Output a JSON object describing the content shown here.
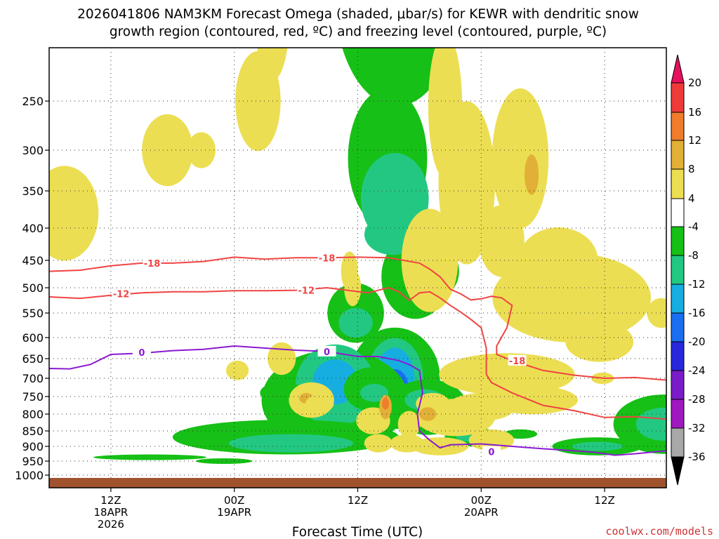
{
  "title_line1": "2026041806 NAM3KM Forecast Omega (shaded, μbar/s) for KEWR with dendritic snow",
  "title_line2": "growth region (contoured, red, ºC) and freezing level (contoured, purple, ºC)",
  "credit": "coolwx.com/models",
  "chart_data": {
    "type": "heatmap",
    "xlabel": "Forecast Time (UTC)",
    "ylabel": "",
    "x_ticks": [
      {
        "h": 6,
        "lines": [
          "12Z",
          "18APR",
          "2026"
        ]
      },
      {
        "h": 18,
        "lines": [
          "00Z",
          "19APR"
        ]
      },
      {
        "h": 30,
        "lines": [
          "12Z"
        ]
      },
      {
        "h": 42,
        "lines": [
          "00Z",
          "20APR"
        ]
      },
      {
        "h": 54,
        "lines": [
          "12Z"
        ]
      }
    ],
    "xlim_hours": [
      0,
      60
    ],
    "y_ticks": [
      250,
      300,
      350,
      400,
      450,
      500,
      550,
      600,
      650,
      700,
      750,
      800,
      850,
      900,
      950,
      1000
    ],
    "ylim_hPa": [
      200,
      1020
    ],
    "y_scale": "pressure",
    "colorbar": {
      "labels": [
        "20",
        "16",
        "12",
        "8",
        "4",
        "-4",
        "-8",
        "-12",
        "-16",
        "-20",
        "-24",
        "-28",
        "-32",
        "-36"
      ],
      "colors": [
        "#e8105e",
        "#ef3a3a",
        "#f07c2c",
        "#e2b036",
        "#ecde52",
        "#ffffff",
        "#16c016",
        "#22c882",
        "#16aee0",
        "#1a6ef0",
        "#2828dc",
        "#7a1cc8",
        "#a018c0",
        "#a8a8a8",
        "#000000"
      ]
    },
    "series": [
      {
        "name": "-18",
        "color": "#ef4444",
        "points": [
          [
            0,
            470
          ],
          [
            3,
            468
          ],
          [
            6,
            460
          ],
          [
            9,
            455
          ],
          [
            12,
            455
          ],
          [
            15,
            452
          ],
          [
            18,
            445
          ],
          [
            21,
            448
          ],
          [
            24,
            446
          ],
          [
            27,
            446
          ],
          [
            30,
            445
          ],
          [
            33,
            446
          ],
          [
            36,
            455
          ],
          [
            37,
            466
          ],
          [
            38,
            480
          ],
          [
            39,
            503
          ],
          [
            40,
            512
          ],
          [
            41,
            524
          ],
          [
            42,
            522
          ],
          [
            43,
            517
          ],
          [
            44,
            520
          ],
          [
            45,
            535
          ],
          [
            44.5,
            580
          ],
          [
            43.5,
            620
          ],
          [
            43.5,
            640
          ],
          [
            45,
            655
          ],
          [
            48,
            680
          ],
          [
            51,
            692
          ],
          [
            54,
            700
          ],
          [
            57,
            698
          ],
          [
            60,
            705
          ]
        ]
      },
      {
        "name": "-12",
        "color": "#ef4444",
        "points": [
          [
            0,
            518
          ],
          [
            3,
            521
          ],
          [
            6,
            515
          ],
          [
            9,
            510
          ],
          [
            12,
            508
          ],
          [
            15,
            508
          ],
          [
            18,
            506
          ],
          [
            21,
            506
          ],
          [
            24,
            505
          ],
          [
            27,
            500
          ],
          [
            29,
            505
          ],
          [
            31,
            510
          ],
          [
            33,
            500
          ],
          [
            34,
            508
          ],
          [
            35,
            525
          ],
          [
            36,
            510
          ],
          [
            37,
            508
          ],
          [
            38,
            520
          ],
          [
            39,
            535
          ],
          [
            40,
            548
          ],
          [
            41,
            563
          ],
          [
            42,
            580
          ],
          [
            42.5,
            625
          ],
          [
            42.5,
            660
          ],
          [
            42.5,
            690
          ],
          [
            43,
            712
          ],
          [
            45,
            740
          ],
          [
            48,
            775
          ],
          [
            51,
            790
          ],
          [
            54,
            810
          ],
          [
            57,
            808
          ],
          [
            60,
            815
          ]
        ]
      },
      {
        "name": "0",
        "color": "#8a1ad0",
        "points": [
          [
            0,
            675
          ],
          [
            2,
            676
          ],
          [
            4,
            665
          ],
          [
            6,
            640
          ],
          [
            9,
            637
          ],
          [
            12,
            631
          ],
          [
            15,
            628
          ],
          [
            18,
            620
          ],
          [
            21,
            625
          ],
          [
            24,
            630
          ],
          [
            27,
            633
          ],
          [
            30,
            645
          ],
          [
            32,
            645
          ],
          [
            34,
            655
          ],
          [
            35,
            665
          ],
          [
            36,
            680
          ],
          [
            36.3,
            740
          ],
          [
            35.8,
            800
          ],
          [
            36,
            850
          ],
          [
            37,
            880
          ],
          [
            38,
            905
          ],
          [
            39,
            895
          ],
          [
            42,
            892
          ],
          [
            45,
            900
          ],
          [
            48,
            908
          ],
          [
            51,
            915
          ],
          [
            53,
            920
          ],
          [
            55,
            930
          ],
          [
            57,
            925
          ],
          [
            60,
            915
          ]
        ]
      }
    ]
  }
}
